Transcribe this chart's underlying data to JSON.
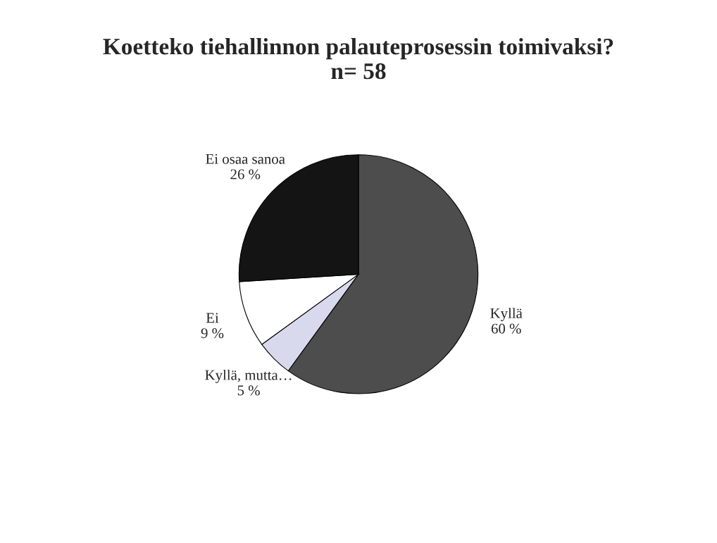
{
  "chart_data": {
    "type": "pie",
    "title": "Koetteko tiehallinnon palauteprosessin toimivaksi?\nn= 58",
    "categories": [
      "Kyllä",
      "Kyllä, mutta…",
      "Ei",
      "Ei osaa sanoa"
    ],
    "values": [
      60,
      5,
      9,
      26
    ],
    "value_labels": [
      "60 %",
      "5 %",
      "9 %",
      "26 %"
    ],
    "colors": [
      "#4d4d4d",
      "#d9d9ee",
      "#ffffff",
      "#141414"
    ],
    "legend": false
  }
}
